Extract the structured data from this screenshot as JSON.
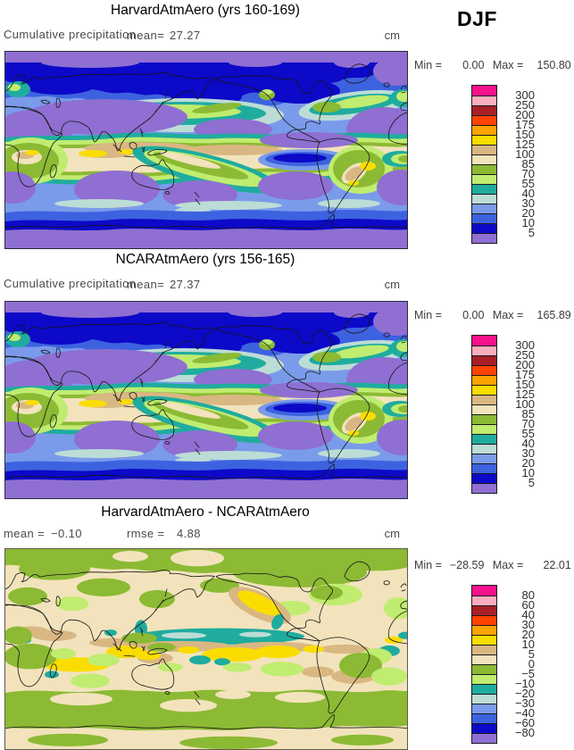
{
  "header": {
    "season": "DJF"
  },
  "colorbar_colors": [
    "#F5128C",
    "#FBAFBE",
    "#A81F26",
    "#FE4300",
    "#FCA303",
    "#FADD00",
    "#D9B783",
    "#F2E3BC",
    "#8CBA34",
    "#C0EC70",
    "#1FAC9E",
    "#BCDDD6",
    "#7A9BEA",
    "#3D62E0",
    "#0D09C8",
    "#8F6FD2"
  ],
  "panels": [
    {
      "title": "HarvardAtmAero (yrs 160-169)",
      "label_left": "Cumulative precipitation",
      "stat1_label": "mean=",
      "stat1_value": "27.27",
      "units": "cm",
      "minmax": {
        "min_label": "Min =",
        "min_value": "0.00",
        "max_label": "Max =",
        "max_value": "150.80"
      },
      "colorbar_labels": [
        "300",
        "250",
        "200",
        "175",
        "150",
        "125",
        "100",
        "85",
        "70",
        "55",
        "40",
        "30",
        "20",
        "10",
        "5"
      ]
    },
    {
      "title": "NCARAtmAero (yrs 156-165)",
      "label_left": "Cumulative precipitation",
      "stat1_label": "mean=",
      "stat1_value": "27.37",
      "units": "cm",
      "minmax": {
        "min_label": "Min =",
        "min_value": "0.00",
        "max_label": "Max =",
        "max_value": "165.89"
      },
      "colorbar_labels": [
        "300",
        "250",
        "200",
        "175",
        "150",
        "125",
        "100",
        "85",
        "70",
        "55",
        "40",
        "30",
        "20",
        "10",
        "5"
      ]
    },
    {
      "title": "HarvardAtmAero - NCARAtmAero",
      "stat1_label": "mean =",
      "stat1_value": "−0.10",
      "stat2_label": "rmse =",
      "stat2_value": "4.88",
      "units": "cm",
      "minmax": {
        "min_label": "Min =",
        "min_value": "−28.59",
        "max_label": "Max =",
        "max_value": "22.01"
      },
      "colorbar_labels": [
        "80",
        "60",
        "40",
        "30",
        "20",
        "10",
        "5",
        "0",
        "−5",
        "−10",
        "−20",
        "−30",
        "−40",
        "−60",
        "−80"
      ]
    }
  ],
  "chart_data": [
    {
      "type": "heatmap",
      "title": "HarvardAtmAero (yrs 160-169)",
      "variable": "Cumulative precipitation",
      "season": "DJF",
      "units": "cm",
      "mean": 27.27,
      "min": 0.0,
      "max": 150.8,
      "projection": "global lat-lon map, Pacific-centered",
      "contour_levels": [
        5,
        10,
        20,
        30,
        40,
        55,
        70,
        85,
        100,
        125,
        150,
        175,
        200,
        250,
        300
      ],
      "legend_position": "right"
    },
    {
      "type": "heatmap",
      "title": "NCARAtmAero (yrs 156-165)",
      "variable": "Cumulative precipitation",
      "season": "DJF",
      "units": "cm",
      "mean": 27.37,
      "min": 0.0,
      "max": 165.89,
      "projection": "global lat-lon map, Pacific-centered",
      "contour_levels": [
        5,
        10,
        20,
        30,
        40,
        55,
        70,
        85,
        100,
        125,
        150,
        175,
        200,
        250,
        300
      ],
      "legend_position": "right"
    },
    {
      "type": "heatmap",
      "title": "HarvardAtmAero - NCARAtmAero",
      "variable": "Cumulative precipitation difference",
      "season": "DJF",
      "units": "cm",
      "mean": -0.1,
      "rmse": 4.88,
      "min": -28.59,
      "max": 22.01,
      "projection": "global lat-lon map, Pacific-centered",
      "contour_levels": [
        -80,
        -60,
        -40,
        -30,
        -20,
        -10,
        -5,
        0,
        5,
        10,
        20,
        30,
        40,
        60,
        80
      ],
      "legend_position": "right"
    }
  ]
}
